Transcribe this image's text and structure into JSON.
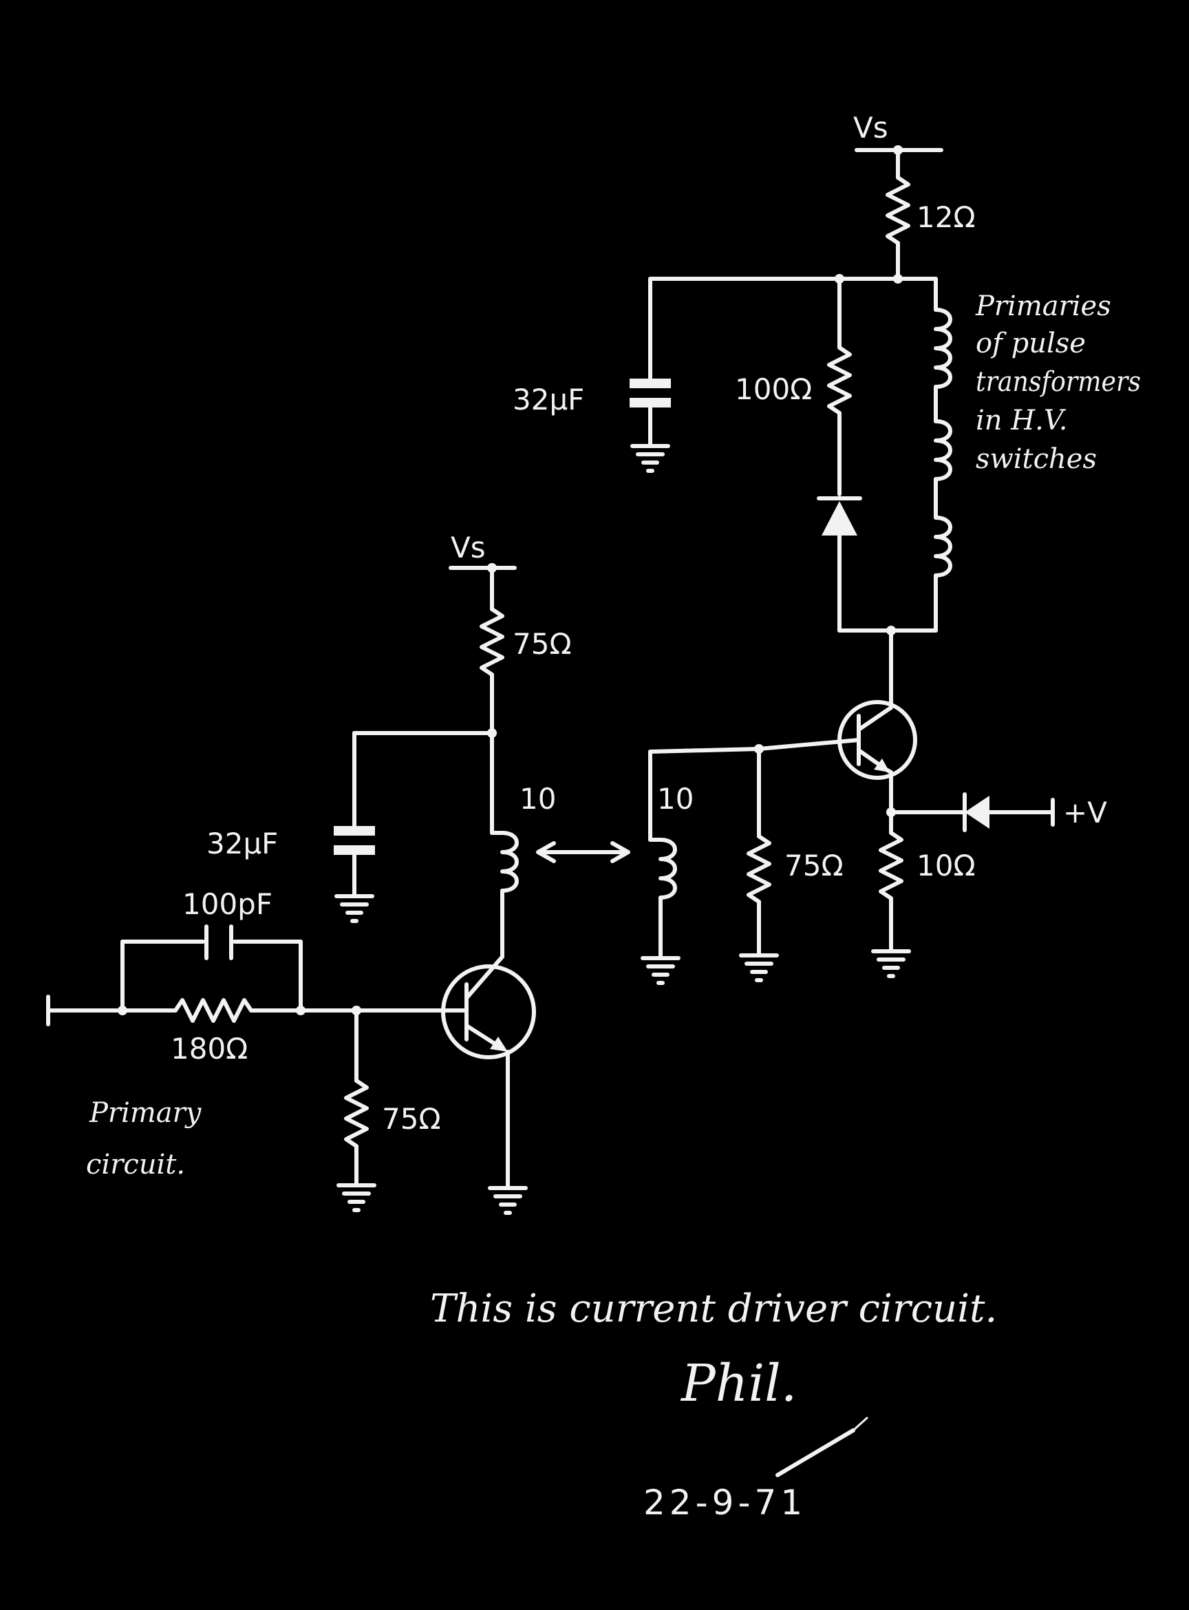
{
  "colors": {
    "background": "#000000",
    "ink": "#f2f2f2"
  },
  "supply_top": "Vs",
  "supply_left": "Vs",
  "r_top": "12Ω",
  "c_top": "32μF",
  "r_diode": "100Ω",
  "primaries_label": [
    "Primaries",
    "of pulse",
    "transformers",
    "in H.V.",
    "switches"
  ],
  "r_collector_left": "75Ω",
  "c_left": "32μF",
  "coil_left_turns": "10",
  "coil_right_turns": "10",
  "r_base_right": "75Ω",
  "r_emitter_right": "10Ω",
  "plus_v": "+V",
  "c_input": "100pF",
  "r_input": "180Ω",
  "r_base_left": "75Ω",
  "primary_circuit_label": [
    "Primary",
    "circuit."
  ],
  "note": "This is current driver circuit.",
  "signature": "Phil.",
  "date": "22-9-71"
}
